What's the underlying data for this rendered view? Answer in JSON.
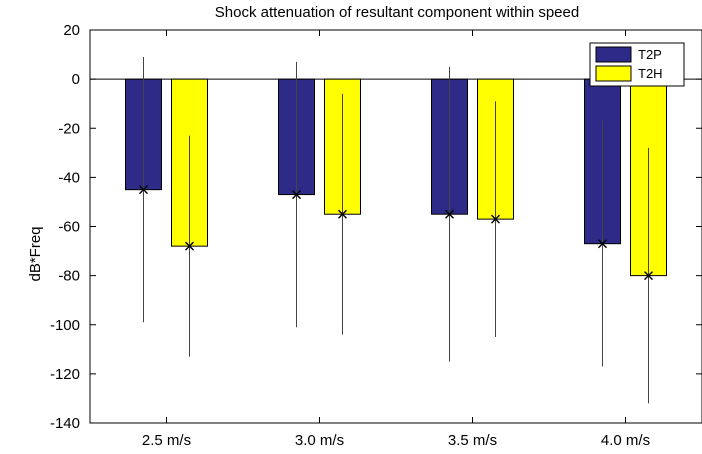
{
  "chart_data": {
    "type": "bar",
    "title": "Shock attenuation of resultant component within speed",
    "ylabel": "dB*Freq",
    "xlabel": "",
    "categories": [
      "2.5 m/s",
      "3.0 m/s",
      "3.5 m/s",
      "4.0 m/s"
    ],
    "ylim": [
      -140,
      20
    ],
    "yticks": [
      20,
      0,
      -20,
      -40,
      -60,
      -80,
      -100,
      -120,
      -140
    ],
    "legend_position": "top-right",
    "series": [
      {
        "name": "T2P",
        "color": "#2e2a87",
        "values": [
          -45,
          -47,
          -55,
          -67
        ],
        "error_low": [
          -99,
          -101,
          -115,
          -117
        ],
        "error_high": [
          9,
          7,
          5,
          -17
        ]
      },
      {
        "name": "T2H",
        "color": "#ffff00",
        "values": [
          -68,
          -55,
          -57,
          -80
        ],
        "error_low": [
          -113,
          -104,
          -105,
          -132
        ],
        "error_high": [
          -23,
          -6,
          -9,
          -28
        ]
      }
    ]
  }
}
